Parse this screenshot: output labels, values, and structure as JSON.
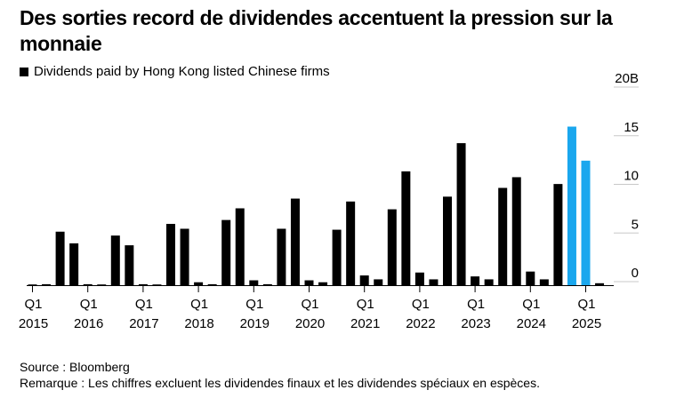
{
  "title": "Des sorties record de dividendes accentuent la pression sur la monnaie",
  "legend_label": "Dividends paid by Hong Kong listed Chinese firms",
  "source": "Source : Bloomberg",
  "note": "Remarque : Les chiffres excluent les dividendes finaux et les dividendes spéciaux en espèces.",
  "colors": {
    "bar": "#000000",
    "highlight": "#1aa7ee"
  },
  "chart_data": {
    "type": "bar",
    "title": "Des sorties record de dividendes accentuent la pression sur la monnaie",
    "ylabel": "",
    "xlabel": "",
    "ylim": [
      0,
      20
    ],
    "y_ticks": [
      0,
      5,
      10,
      15,
      20
    ],
    "y_tick_labels": [
      "0",
      "5",
      "10",
      "15",
      "20B"
    ],
    "series": [
      {
        "name": "Dividends paid by Hong Kong listed Chinese firms",
        "quarters": [
          "2015Q1",
          "2015Q2",
          "2015Q3",
          "2015Q4",
          "2016Q1",
          "2016Q2",
          "2016Q3",
          "2016Q4",
          "2017Q1",
          "2017Q2",
          "2017Q3",
          "2017Q4",
          "2018Q1",
          "2018Q2",
          "2018Q3",
          "2018Q4",
          "2019Q1",
          "2019Q2",
          "2019Q3",
          "2019Q4",
          "2020Q1",
          "2020Q2",
          "2020Q3",
          "2020Q4",
          "2021Q1",
          "2021Q2",
          "2021Q3",
          "2021Q4",
          "2022Q1",
          "2022Q2",
          "2022Q3",
          "2022Q4",
          "2023Q1",
          "2023Q2",
          "2023Q3",
          "2023Q4",
          "2024Q1",
          "2024Q2",
          "2024Q3",
          "2024Q4",
          "2025Q1",
          "2025Q2"
        ],
        "values": [
          0.0,
          0.1,
          5.5,
          4.3,
          0.1,
          0.0,
          5.1,
          4.1,
          0.1,
          0.0,
          6.3,
          5.8,
          0.3,
          0.1,
          6.7,
          7.9,
          0.5,
          0.1,
          5.8,
          8.9,
          0.5,
          0.3,
          5.7,
          8.6,
          1.0,
          0.6,
          7.8,
          11.7,
          1.3,
          0.6,
          9.1,
          14.6,
          0.9,
          0.6,
          10.0,
          11.1,
          1.4,
          0.6,
          10.4,
          16.3,
          12.8,
          0.2
        ],
        "highlight": [
          39,
          40
        ]
      }
    ],
    "x_ticks": [
      {
        "index": 0,
        "quarter": "Q1",
        "year": "2015"
      },
      {
        "index": 4,
        "quarter": "Q1",
        "year": "2016"
      },
      {
        "index": 8,
        "quarter": "Q1",
        "year": "2017"
      },
      {
        "index": 12,
        "quarter": "Q1",
        "year": "2018"
      },
      {
        "index": 16,
        "quarter": "Q1",
        "year": "2019"
      },
      {
        "index": 20,
        "quarter": "Q1",
        "year": "2020"
      },
      {
        "index": 24,
        "quarter": "Q1",
        "year": "2021"
      },
      {
        "index": 28,
        "quarter": "Q1",
        "year": "2022"
      },
      {
        "index": 32,
        "quarter": "Q1",
        "year": "2023"
      },
      {
        "index": 36,
        "quarter": "Q1",
        "year": "2024"
      },
      {
        "index": 40,
        "quarter": "Q1",
        "year": "2025"
      }
    ]
  }
}
